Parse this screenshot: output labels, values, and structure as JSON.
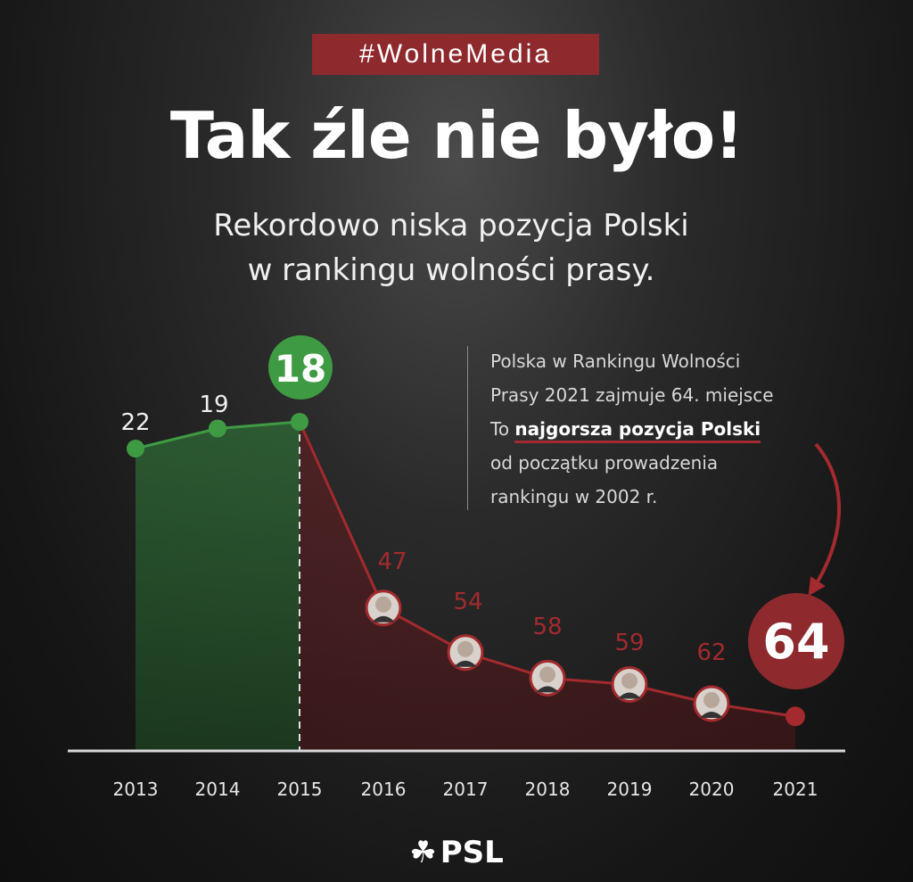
{
  "header": {
    "hashtag": "#WolneMedia",
    "title": "Tak źle nie było!",
    "subtitle_line1": "Rekordowo niska pozycja Polski",
    "subtitle_line2": "w rankingu wolności prasy."
  },
  "note": {
    "line1": "Polska w Rankingu Wolności",
    "line2": "Prasy 2021 zajmuje 64. miejsce",
    "line3_prefix": "To",
    "line3_highlight": "najgorsza pozycja Polski",
    "line4": "od początku prowadzenia",
    "line5": "rankingu w 2002 r."
  },
  "colors": {
    "green": "#3f9a44",
    "red": "#a32a2e",
    "hashtag_bg": "#8e2a2d"
  },
  "logo": {
    "text": "PSL",
    "icon": "clover-icon"
  },
  "chart_data": {
    "type": "line",
    "title": "",
    "xlabel": "",
    "ylabel": "",
    "x": [
      "2013",
      "2014",
      "2015",
      "2016",
      "2017",
      "2018",
      "2019",
      "2020",
      "2021"
    ],
    "values": [
      22,
      19,
      18,
      47,
      54,
      58,
      59,
      62,
      64
    ],
    "labels": [
      "22",
      "19",
      "18",
      "47",
      "54",
      "58",
      "59",
      "62",
      "64"
    ],
    "highlight": {
      "best": "18",
      "worst": "64"
    },
    "y_axis_inverted": true,
    "grid": false,
    "legend": "none"
  }
}
